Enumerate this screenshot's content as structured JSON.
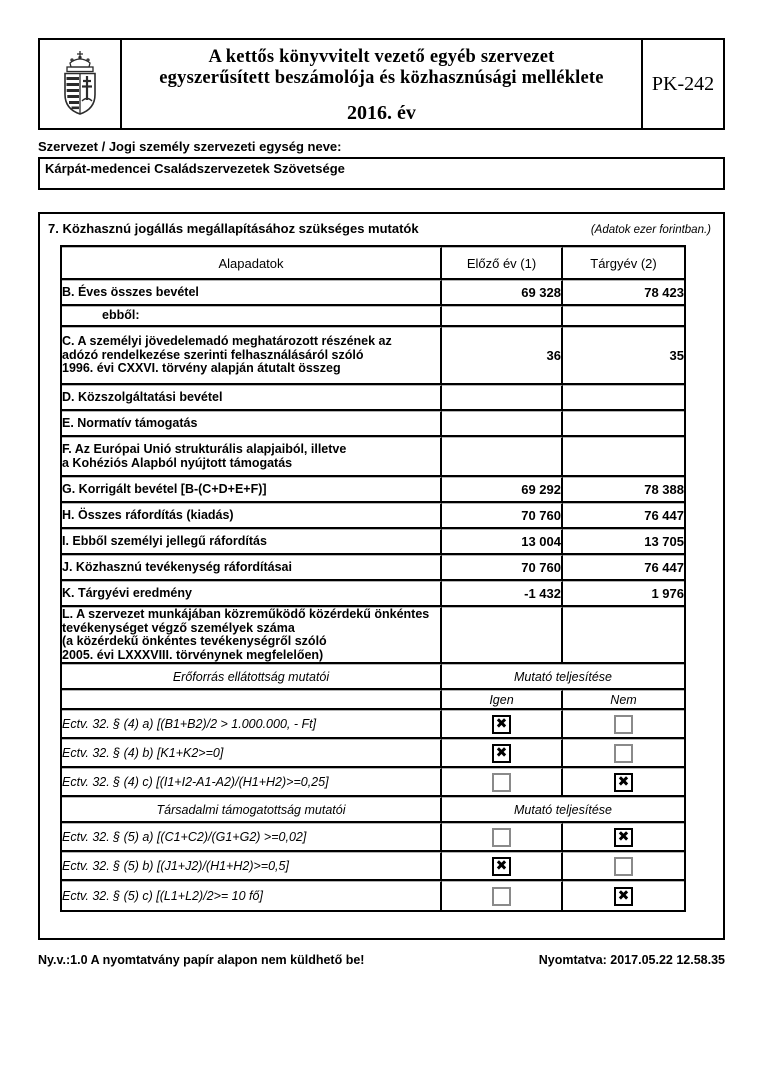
{
  "header": {
    "title_line1": "A kettős könyvvitelt vezető egyéb szervezet",
    "title_line2": "egyszerűsített beszámolója és közhasznúsági melléklete",
    "year": "2016. év",
    "form_code": "PK-242"
  },
  "icons": {
    "logo": "hungary-coat-of-arms",
    "checkbox_checked_glyph": "✖"
  },
  "org": {
    "label": "Szervezet / Jogi személy szervezeti egység neve:",
    "name": "Kárpát-medencei Családszervezetek Szövetsége"
  },
  "section7": {
    "title": "7. Közhasznú jogállás megállapításához szükséges mutatók",
    "note": "(Adatok ezer forintban.)",
    "columns": [
      "Alapadatok",
      "Előző év (1)",
      "Tárgyév (2)"
    ],
    "data_rows": [
      {
        "label": "B. Éves összes bevétel",
        "prev": "69 328",
        "curr": "78 423"
      },
      {
        "label": "ebből:",
        "prev": "",
        "curr": "",
        "indent": true
      },
      {
        "label": "C. A személyi jövedelemadó meghatározott részének az\nadózó rendelkezése szerinti felhasználásáról szóló\n1996. évi CXXVI. törvény alapján átutalt összeg",
        "prev": "36",
        "curr": "35"
      },
      {
        "label": "D. Közszolgáltatási bevétel",
        "prev": "",
        "curr": ""
      },
      {
        "label": "E. Normatív támogatás",
        "prev": "",
        "curr": ""
      },
      {
        "label": "F. Az Európai Unió strukturális alapjaiból, illetve\na Kohéziós Alapból nyújtott támogatás",
        "prev": "",
        "curr": ""
      },
      {
        "label": "G. Korrigált bevétel [B-(C+D+E+F)]",
        "prev": "69 292",
        "curr": "78 388"
      },
      {
        "label": "H. Összes ráfordítás (kiadás)",
        "prev": "70 760",
        "curr": "76 447"
      },
      {
        "label": "I. Ebből személyi jellegű ráfordítás",
        "prev": "13 004",
        "curr": "13 705"
      },
      {
        "label": "J. Közhasznú tevékenység ráfordításai",
        "prev": "70 760",
        "curr": "76 447"
      },
      {
        "label": "K. Tárgyévi eredmény",
        "prev": "-1 432",
        "curr": "1 976"
      },
      {
        "label": "L. A szervezet munkájában közreműködő közérdekű önkéntes\ntevékenységet végző személyek száma\n(a közérdekű önkéntes tevékenységről szóló\n2005. évi LXXXVIII. törvénynek megfelelően)",
        "prev": "",
        "curr": ""
      }
    ],
    "indicator_groups": [
      {
        "group_label": "Erőforrás ellátottság mutatói",
        "result_label": "Mutató teljesítése",
        "yes_label": "Igen",
        "no_label": "Nem",
        "show_yes_no_header": true,
        "rows": [
          {
            "label": "Ectv. 32. § (4) a) [(B1+B2)/2 > 1.000.000, - Ft]",
            "yes": true,
            "no": false
          },
          {
            "label": "Ectv. 32. § (4) b) [K1+K2>=0]",
            "yes": true,
            "no": false
          },
          {
            "label": "Ectv. 32. § (4) c) [(I1+I2-A1-A2)/(H1+H2)>=0,25]",
            "yes": false,
            "no": true
          }
        ]
      },
      {
        "group_label": "Társadalmi támogatottság mutatói",
        "result_label": "Mutató teljesítése",
        "yes_label": "Igen",
        "no_label": "Nem",
        "show_yes_no_header": false,
        "rows": [
          {
            "label": "Ectv. 32. § (5) a) [(C1+C2)/(G1+G2) >=0,02]",
            "yes": false,
            "no": true
          },
          {
            "label": "Ectv. 32. § (5) b) [(J1+J2)/(H1+H2)>=0,5]",
            "yes": true,
            "no": false
          },
          {
            "label": "Ectv. 32. § (5) c) [(L1+L2)/2>= 10 fő]",
            "yes": false,
            "no": true
          }
        ]
      }
    ]
  },
  "footer": {
    "left": "Ny.v.:1.0 A nyomtatvány papír alapon nem küldhető be!",
    "right": "Nyomtatva: 2017.05.22 12.58.35"
  }
}
